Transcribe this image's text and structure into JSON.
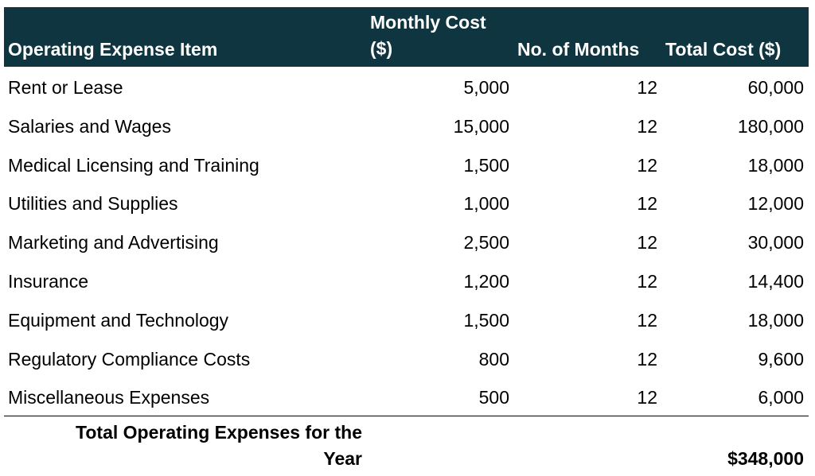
{
  "header": {
    "item": "Operating Expense Item",
    "monthly_cost_line1": "Monthly Cost",
    "monthly_cost_line2": "($)",
    "months": "No. of Months",
    "total_cost": "Total Cost ($)"
  },
  "rows": [
    {
      "item": "Rent or Lease",
      "monthly": "5,000",
      "months": "12",
      "total": "60,000"
    },
    {
      "item": "Salaries and Wages",
      "monthly": "15,000",
      "months": "12",
      "total": "180,000"
    },
    {
      "item": "Medical Licensing and Training",
      "monthly": "1,500",
      "months": "12",
      "total": "18,000"
    },
    {
      "item": "Utilities and Supplies",
      "monthly": "1,000",
      "months": "12",
      "total": "12,000"
    },
    {
      "item": "Marketing and Advertising",
      "monthly": "2,500",
      "months": "12",
      "total": "30,000"
    },
    {
      "item": "Insurance",
      "monthly": "1,200",
      "months": "12",
      "total": "14,400"
    },
    {
      "item": "Equipment and Technology",
      "monthly": "1,500",
      "months": "12",
      "total": "18,000"
    },
    {
      "item": "Regulatory Compliance Costs",
      "monthly": "800",
      "months": "12",
      "total": "9,600"
    },
    {
      "item": "Miscellaneous Expenses",
      "monthly": "500",
      "months": "12",
      "total": "6,000"
    }
  ],
  "total": {
    "label_line1": "Total Operating Expenses for the",
    "label_line2": "Year",
    "value": "$348,000"
  },
  "colors": {
    "header_bg": "#0f3640",
    "header_text": "#ffffff"
  }
}
